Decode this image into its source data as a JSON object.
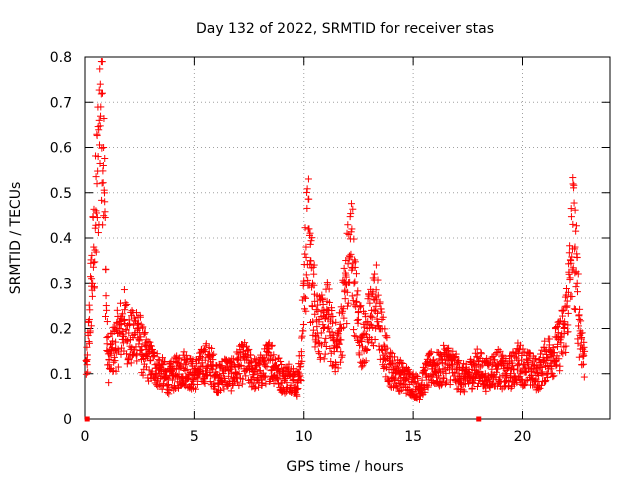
{
  "chart_data": {
    "type": "scatter",
    "title": "Day 132 of 2022, SRMTID for receiver stas",
    "xlabel": "GPS time / hours",
    "ylabel": "SRMTID / TECUs",
    "xlim": [
      0,
      24
    ],
    "ylim": [
      0,
      0.8
    ],
    "xticks": [
      0,
      5,
      10,
      15,
      20
    ],
    "yticks": [
      0,
      0.1,
      0.2,
      0.3,
      0.4,
      0.5,
      0.6,
      0.7,
      0.8
    ],
    "grid": true,
    "marker": "+",
    "color": "#ff0000",
    "series": [
      {
        "name": "stas",
        "x": [
          0.1,
          0.2,
          0.3,
          0.4,
          0.5,
          0.55,
          0.6,
          0.65,
          0.7,
          0.75,
          0.8,
          0.85,
          0.9,
          0.95,
          1.0,
          1.1,
          1.2,
          1.4,
          1.6,
          1.8,
          2.0,
          2.2,
          2.4,
          2.6,
          2.8,
          3.0,
          3.2,
          3.4,
          3.6,
          3.8,
          4.0,
          4.3,
          4.6,
          4.9,
          5.2,
          5.5,
          5.8,
          6.1,
          6.4,
          6.7,
          7.0,
          7.3,
          7.6,
          7.9,
          8.2,
          8.5,
          8.8,
          9.1,
          9.4,
          9.7,
          9.9,
          10.0,
          10.1,
          10.2,
          10.3,
          10.4,
          10.5,
          10.7,
          10.9,
          11.1,
          11.3,
          11.5,
          11.7,
          11.9,
          12.1,
          12.2,
          12.3,
          12.5,
          12.7,
          12.9,
          13.1,
          13.3,
          13.5,
          13.7,
          13.9,
          14.1,
          14.4,
          14.7,
          15.0,
          15.3,
          15.6,
          15.9,
          16.2,
          16.5,
          16.8,
          17.1,
          17.4,
          17.7,
          18.0,
          18.3,
          18.6,
          18.9,
          19.2,
          19.5,
          19.8,
          20.1,
          20.4,
          20.7,
          21.0,
          21.3,
          21.6,
          21.9,
          22.1,
          22.2,
          22.3,
          22.4,
          22.5,
          22.6,
          22.7,
          22.8
        ],
        "y": [
          0.12,
          0.22,
          0.31,
          0.38,
          0.46,
          0.52,
          0.58,
          0.66,
          0.74,
          0.79,
          0.72,
          0.6,
          0.48,
          0.33,
          0.18,
          0.12,
          0.15,
          0.17,
          0.2,
          0.22,
          0.19,
          0.18,
          0.21,
          0.16,
          0.14,
          0.13,
          0.12,
          0.11,
          0.1,
          0.09,
          0.1,
          0.11,
          0.12,
          0.1,
          0.11,
          0.13,
          0.12,
          0.09,
          0.11,
          0.1,
          0.12,
          0.13,
          0.11,
          0.1,
          0.12,
          0.14,
          0.11,
          0.09,
          0.1,
          0.08,
          0.14,
          0.3,
          0.38,
          0.42,
          0.35,
          0.3,
          0.26,
          0.22,
          0.2,
          0.24,
          0.18,
          0.16,
          0.2,
          0.3,
          0.36,
          0.42,
          0.3,
          0.22,
          0.18,
          0.2,
          0.24,
          0.27,
          0.2,
          0.16,
          0.12,
          0.11,
          0.1,
          0.09,
          0.08,
          0.07,
          0.1,
          0.12,
          0.11,
          0.13,
          0.12,
          0.1,
          0.09,
          0.11,
          0.12,
          0.1,
          0.11,
          0.12,
          0.1,
          0.11,
          0.13,
          0.12,
          0.11,
          0.1,
          0.13,
          0.15,
          0.16,
          0.2,
          0.28,
          0.35,
          0.43,
          0.38,
          0.3,
          0.22,
          0.18,
          0.14
        ],
        "outliers_at_zero_x": [
          0.1,
          18.0
        ],
        "outlier_y": 0
      }
    ]
  }
}
